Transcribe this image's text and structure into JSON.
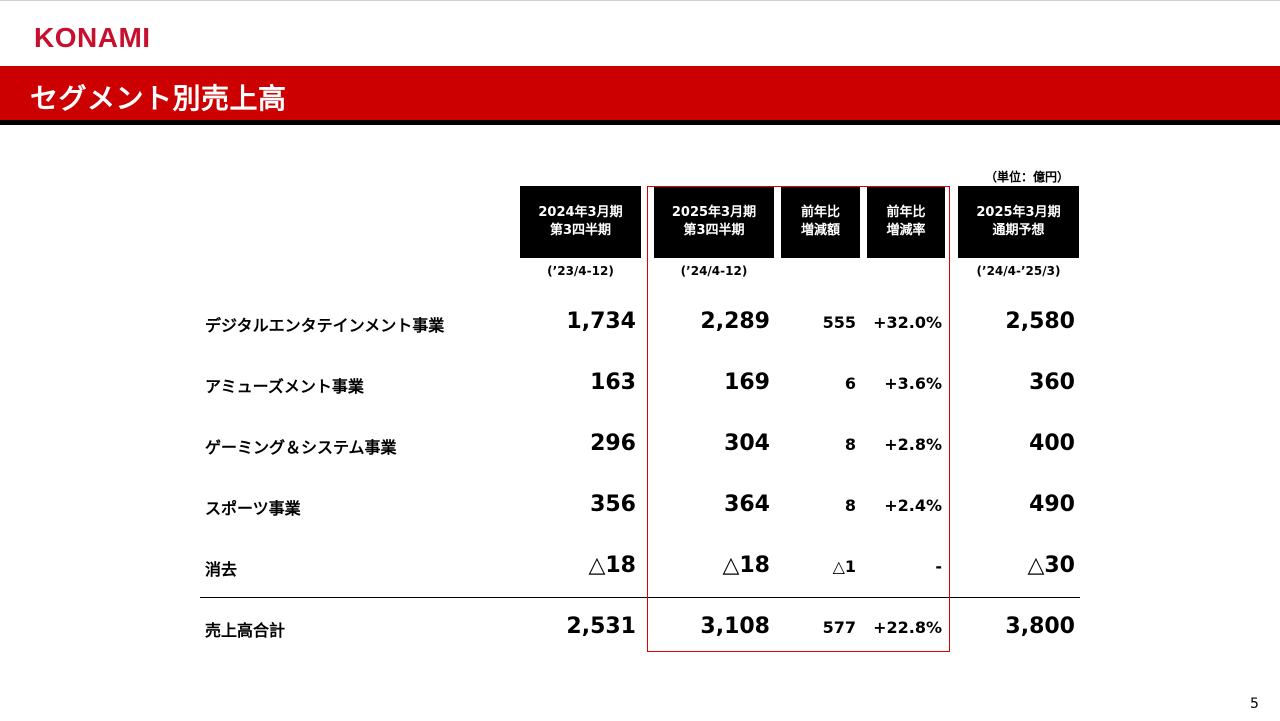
{
  "brand": "KONAMI",
  "title": "セグメント別売上高",
  "unit": "（単位：億円）",
  "headers": {
    "fy2024q3": [
      "2024年3月期",
      "第3四半期"
    ],
    "fy2025q3": [
      "2025年3月期",
      "第3四半期"
    ],
    "yoy_amount": [
      "前年比",
      "増減額"
    ],
    "yoy_rate": [
      "前年比",
      "増減率"
    ],
    "fy2025_forecast": [
      "2025年3月期",
      "通期予想"
    ]
  },
  "periods": {
    "fy2024q3": "(’23/4-12)",
    "fy2025q3": "(’24/4-12)",
    "fy2025_forecast": "(’24/4-’25/3)"
  },
  "rows": [
    {
      "label": "デジタルエンタテインメント事業",
      "prev": "1,734",
      "curr": "2,289",
      "diff": "555",
      "rate": "+32.0%",
      "forecast": "2,580"
    },
    {
      "label": "アミューズメント事業",
      "prev": "163",
      "curr": "169",
      "diff": "6",
      "rate": "+3.6%",
      "forecast": "360"
    },
    {
      "label": "ゲーミング＆システム事業",
      "prev": "296",
      "curr": "304",
      "diff": "8",
      "rate": "+2.8%",
      "forecast": "400"
    },
    {
      "label": "スポーツ事業",
      "prev": "356",
      "curr": "364",
      "diff": "8",
      "rate": "+2.4%",
      "forecast": "490"
    },
    {
      "label": "消去",
      "prev": "△18",
      "curr": "△18",
      "diff": "△1",
      "rate": "-",
      "forecast": "△30"
    },
    {
      "label": "売上高合計",
      "prev": "2,531",
      "curr": "3,108",
      "diff": "577",
      "rate": "+22.8%",
      "forecast": "3,800"
    }
  ],
  "page_number": "5",
  "colors": {
    "brand_red": "#cc0000",
    "highlight_border": "#e00000"
  }
}
